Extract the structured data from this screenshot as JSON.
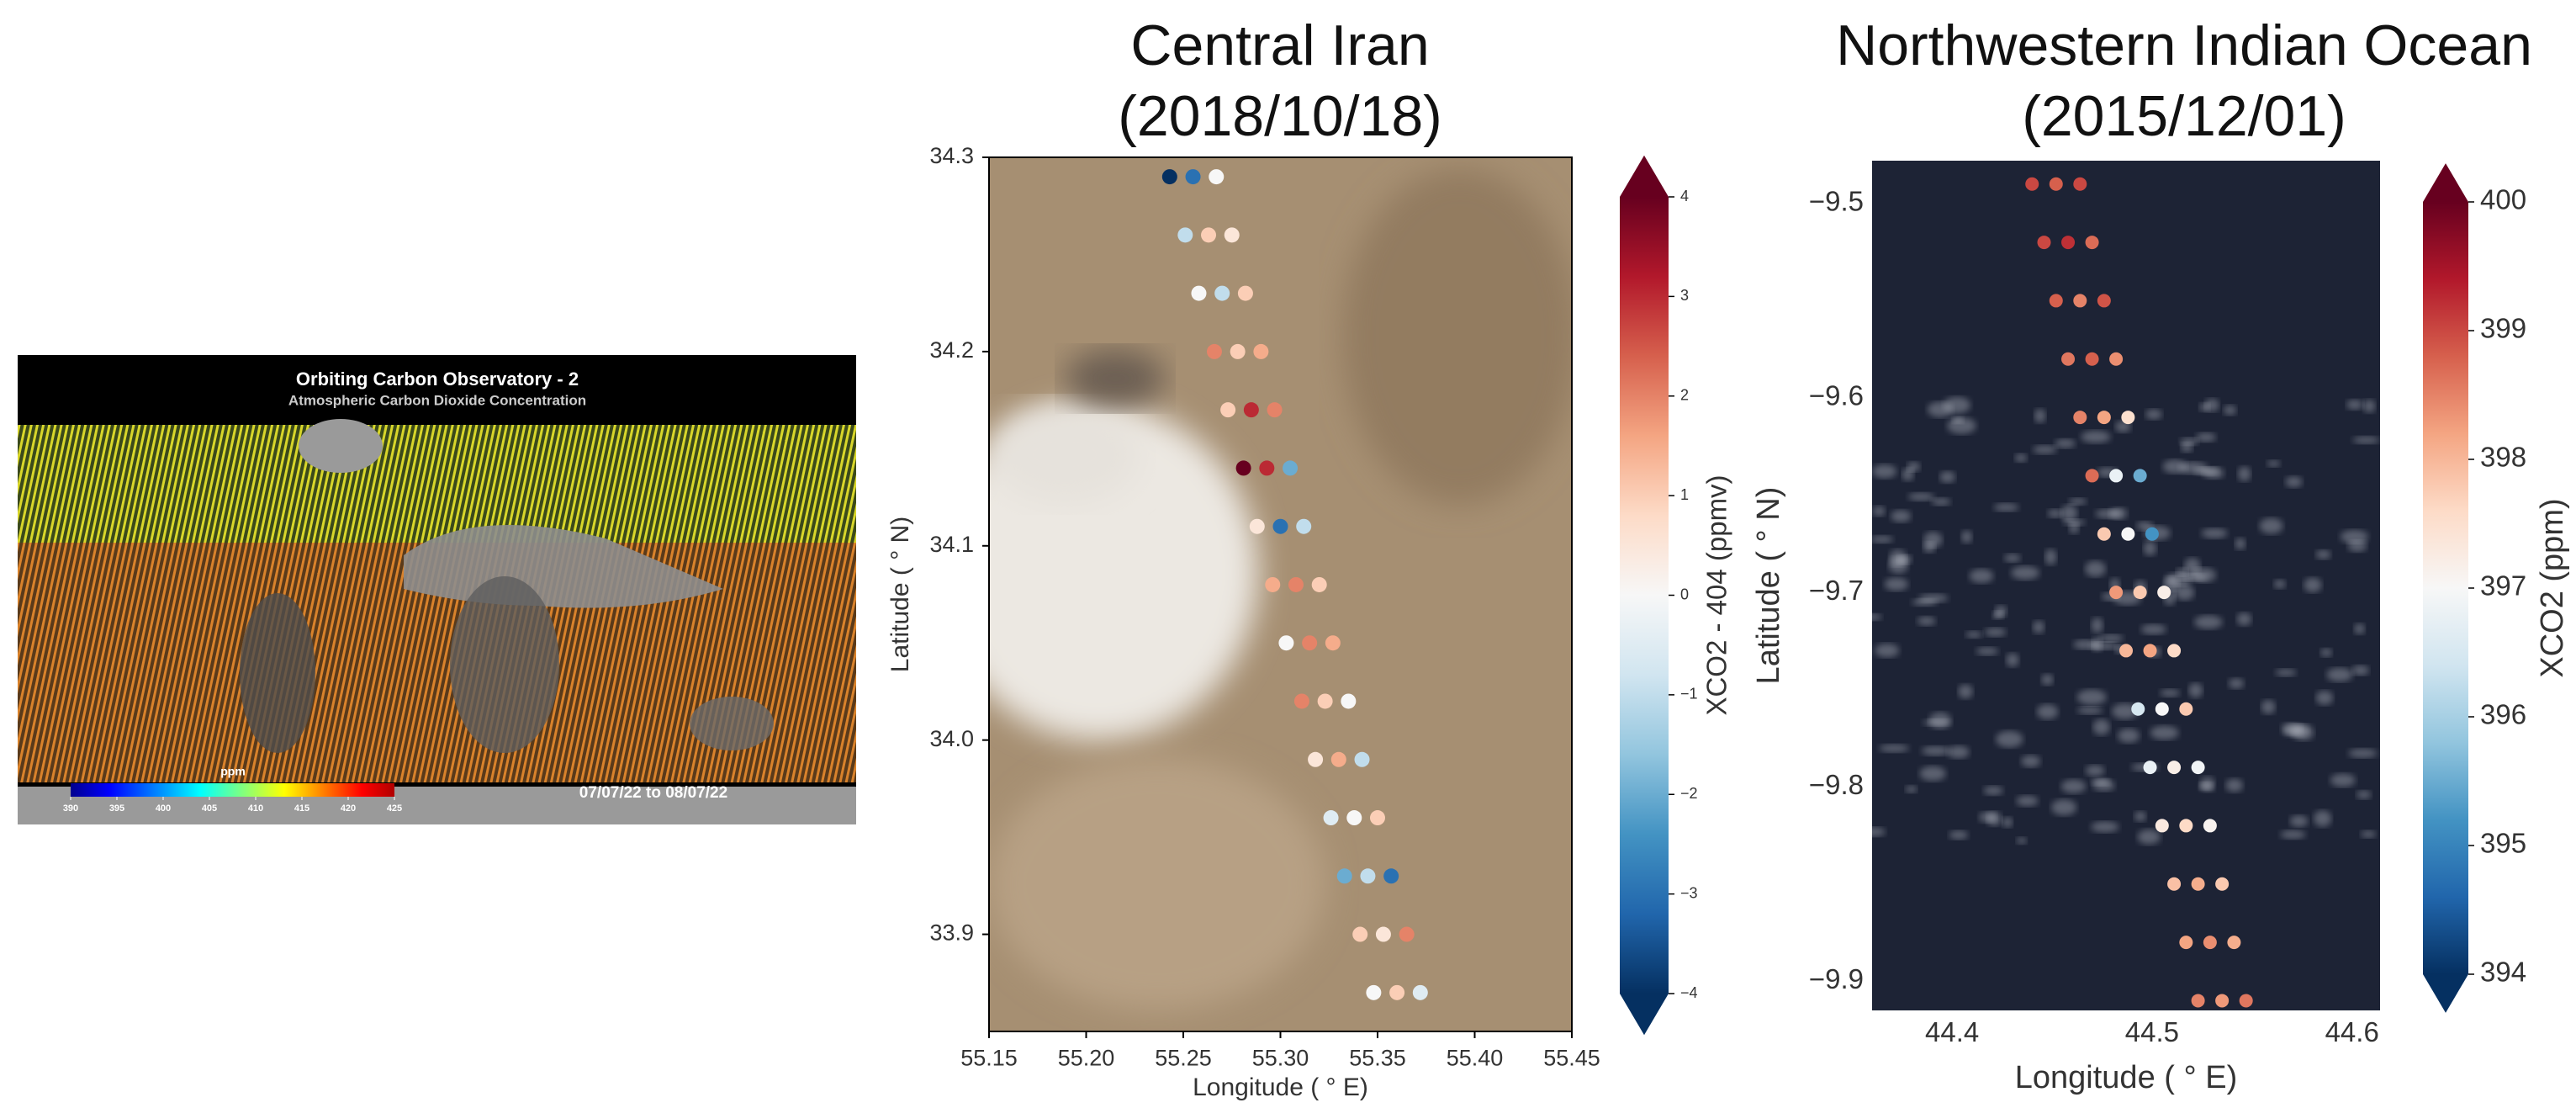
{
  "chart_data": [
    {
      "type": "map",
      "title": "Orbiting Carbon Observatory - 2",
      "subtitle": "Atmospheric Carbon Dioxide Concentration",
      "colorbar": {
        "label": "ppm",
        "lim": [
          390,
          425
        ],
        "ticks": [
          390,
          395,
          400,
          405,
          410,
          415,
          420,
          425
        ]
      },
      "annotation": "07/07/22 to 08/07/22"
    },
    {
      "type": "scatter",
      "title": "Central Iran",
      "subtitle": "(2018/10/18)",
      "x_label": "Longitude ( ° E)",
      "y_label": "Latitude ( ° N)",
      "xlim": [
        55.15,
        55.45
      ],
      "xticks": [
        55.15,
        {
          "value": 55.2,
          "label": "55.20"
        },
        55.25,
        {
          "value": 55.3,
          "label": "55.30"
        },
        55.35,
        {
          "value": 55.4,
          "label": "55.40"
        },
        55.45
      ],
      "ylim": [
        33.85,
        34.3
      ],
      "yticks": [
        33.9,
        {
          "value": 34,
          "label": "34.0"
        },
        34.1,
        34.2,
        34.3
      ],
      "colormap": "RdBu_r",
      "frame": true,
      "colorbar": {
        "label": "XCO2 - 404 (ppmv)",
        "lim": [
          -4,
          4
        ],
        "ticks": [
          {
            "value": -4,
            "label": "−4"
          },
          {
            "value": -3,
            "label": "−3"
          },
          {
            "value": -2,
            "label": "−2"
          },
          {
            "value": -1,
            "label": "−1"
          },
          0,
          1,
          2,
          3,
          4
        ]
      },
      "x": [
        55.243,
        55.255,
        55.267,
        55.251,
        55.263,
        55.275,
        55.258,
        55.27,
        55.282,
        55.266,
        55.278,
        55.29,
        55.273,
        55.285,
        55.297,
        55.281,
        55.293,
        55.305,
        55.288,
        55.3,
        55.312,
        55.296,
        55.308,
        55.32,
        55.303,
        55.315,
        55.327,
        55.311,
        55.323,
        55.335,
        55.318,
        55.33,
        55.342,
        55.326,
        55.338,
        55.35,
        55.333,
        55.345,
        55.357,
        55.341,
        55.353,
        55.365,
        55.348,
        55.36,
        55.372
      ],
      "y": [
        34.29,
        34.29,
        34.29,
        34.26,
        34.26,
        34.26,
        34.23,
        34.23,
        34.23,
        34.2,
        34.2,
        34.2,
        34.17,
        34.17,
        34.17,
        34.14,
        34.14,
        34.14,
        34.11,
        34.11,
        34.11,
        34.08,
        34.08,
        34.08,
        34.05,
        34.05,
        34.05,
        34.02,
        34.02,
        34.02,
        33.99,
        33.99,
        33.99,
        33.96,
        33.96,
        33.96,
        33.93,
        33.93,
        33.93,
        33.9,
        33.9,
        33.9,
        33.87,
        33.87,
        33.87
      ],
      "values": [
        -4,
        -3,
        0,
        -1,
        1,
        0.5,
        0,
        -1,
        1,
        2,
        1,
        1.5,
        1,
        3,
        2,
        4,
        3,
        -2,
        0.5,
        -3,
        -1,
        1.5,
        2,
        1,
        0,
        2,
        1.5,
        2,
        1,
        0,
        0.5,
        1.5,
        -1,
        -0.5,
        0,
        1,
        -2,
        -1,
        -3,
        1,
        0.5,
        2,
        0,
        1,
        -0.5
      ]
    },
    {
      "type": "scatter",
      "title": "Northwestern Indian Ocean",
      "subtitle": "(2015/12/01)",
      "x_label": "Longitude ( ° E)",
      "y_label": "Latitude ( ° N)",
      "xlim": [
        44.36,
        44.614
      ],
      "xticks": [
        44.4,
        44.5,
        44.6
      ],
      "ylim": [
        -9.915,
        -9.478
      ],
      "yticks": [
        {
          "value": -9.9,
          "label": "−9.9"
        },
        {
          "value": -9.8,
          "label": "−9.8"
        },
        {
          "value": -9.7,
          "label": "−9.7"
        },
        {
          "value": -9.6,
          "label": "−9.6"
        },
        {
          "value": -9.5,
          "label": "−9.5"
        }
      ],
      "colormap": "RdBu_r",
      "frame": false,
      "colorbar": {
        "label": "XCO2 (ppm)",
        "lim": [
          394,
          400
        ],
        "ticks": [
          394,
          395,
          396,
          397,
          398,
          399,
          400
        ]
      },
      "x": [
        44.44,
        44.452,
        44.464,
        44.446,
        44.458,
        44.47,
        44.452,
        44.464,
        44.476,
        44.458,
        44.47,
        44.482,
        44.464,
        44.476,
        44.488,
        44.47,
        44.482,
        44.494,
        44.476,
        44.488,
        44.5,
        44.482,
        44.494,
        44.506,
        44.487,
        44.499,
        44.511,
        44.493,
        44.505,
        44.517,
        44.499,
        44.511,
        44.523,
        44.505,
        44.517,
        44.529,
        44.511,
        44.523,
        44.535,
        44.517,
        44.529,
        44.541,
        44.523,
        44.535,
        44.547
      ],
      "y": [
        -9.49,
        -9.49,
        -9.49,
        -9.52,
        -9.52,
        -9.52,
        -9.55,
        -9.55,
        -9.55,
        -9.58,
        -9.58,
        -9.58,
        -9.61,
        -9.61,
        -9.61,
        -9.64,
        -9.64,
        -9.64,
        -9.67,
        -9.67,
        -9.67,
        -9.7,
        -9.7,
        -9.7,
        -9.73,
        -9.73,
        -9.73,
        -9.76,
        -9.76,
        -9.76,
        -9.79,
        -9.79,
        -9.79,
        -9.82,
        -9.82,
        -9.82,
        -9.85,
        -9.85,
        -9.85,
        -9.88,
        -9.88,
        -9.88,
        -9.91,
        -9.91,
        -9.91
      ],
      "values": [
        399,
        398.8,
        399,
        399,
        399.2,
        398.7,
        398.8,
        398.5,
        398.9,
        398.6,
        398.8,
        398.4,
        398.5,
        398.2,
        397.5,
        398.7,
        396.8,
        395.5,
        397.8,
        397,
        395.2,
        398.3,
        397.8,
        397.2,
        398,
        398.2,
        397.6,
        396.5,
        397,
        397.8,
        396.8,
        397.2,
        396.9,
        397.3,
        397.6,
        397.1,
        397.9,
        398.1,
        397.8,
        398.2,
        398.4,
        398.1,
        398.5,
        398.3,
        398.6
      ]
    }
  ]
}
